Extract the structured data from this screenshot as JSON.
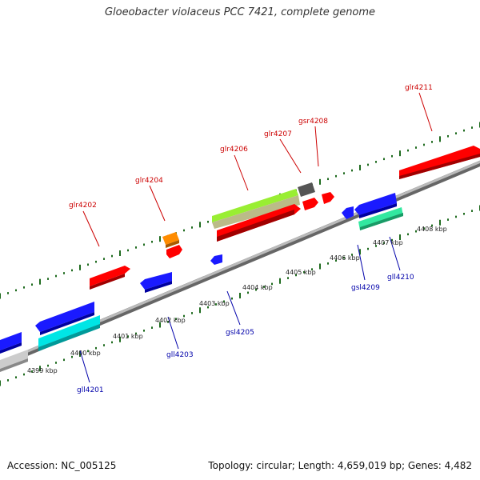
{
  "title": "Gloeobacter violaceus PCC 7421, complete genome",
  "footer": {
    "accession": "Accession: NC_005125",
    "summary": "Topology: circular; Length: 4,659,019 bp; Genes: 4,482"
  },
  "colors": {
    "forward_label": "#cc0000",
    "reverse_label": "#0000aa",
    "backbone": "#8a8a8a",
    "tick_major": "#1f6b1f",
    "tick_minor": "#1f6b1f"
  },
  "scale_ticks": [
    {
      "label": "4399 kbp",
      "kbp": 4399
    },
    {
      "label": "4400 kbp",
      "kbp": 4400
    },
    {
      "label": "4401 kbp",
      "kbp": 4401
    },
    {
      "label": "4402 kbp",
      "kbp": 4402
    },
    {
      "label": "4403 kbp",
      "kbp": 4403
    },
    {
      "label": "4404 kbp",
      "kbp": 4404
    },
    {
      "label": "4405 kbp",
      "kbp": 4405
    },
    {
      "label": "4406 kbp",
      "kbp": 4406
    },
    {
      "label": "4407 kbp",
      "kbp": 4407
    },
    {
      "label": "4408 kbp",
      "kbp": 4408
    }
  ],
  "gene_labels": [
    {
      "text": "gll4201",
      "strand": "reverse"
    },
    {
      "text": "glr4202",
      "strand": "forward"
    },
    {
      "text": "gll4203",
      "strand": "reverse"
    },
    {
      "text": "glr4204",
      "strand": "forward"
    },
    {
      "text": "gsl4205",
      "strand": "reverse"
    },
    {
      "text": "glr4206",
      "strand": "forward"
    },
    {
      "text": "glr4207",
      "strand": "forward"
    },
    {
      "text": "gsr4208",
      "strand": "forward"
    },
    {
      "text": "gsl4209",
      "strand": "reverse"
    },
    {
      "text": "gll4210",
      "strand": "reverse"
    },
    {
      "text": "glr4211",
      "strand": "forward"
    }
  ],
  "features": [
    {
      "gene": "gll4201",
      "strand": "reverse",
      "color": "#00e5e5"
    },
    {
      "gene": "glr4202",
      "strand": "forward",
      "color": "#ff0000"
    },
    {
      "gene": "gll4203",
      "strand": "reverse",
      "color": "#1a1aff"
    },
    {
      "gene": "glr4204",
      "strand": "forward",
      "color": "#ff0000"
    },
    {
      "gene": "gsl4205",
      "strand": "reverse",
      "color": "#1a1aff"
    },
    {
      "gene": "glr4206",
      "strand": "forward",
      "color": "#ff0000"
    },
    {
      "gene": "glr4207",
      "strand": "forward",
      "color": "#ff0000"
    },
    {
      "gene": "gsr4208",
      "strand": "forward",
      "color": "#ff0000"
    },
    {
      "gene": "gsl4209",
      "strand": "reverse",
      "color": "#1a1aff"
    },
    {
      "gene": "gll4210",
      "strand": "reverse",
      "color": "#33e8a0"
    },
    {
      "gene": "glr4211",
      "strand": "forward",
      "color": "#ff0000"
    }
  ]
}
